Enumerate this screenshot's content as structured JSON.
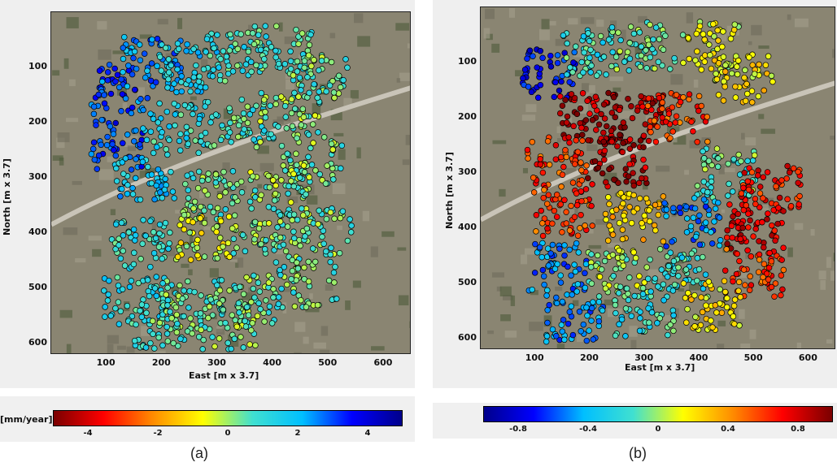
{
  "colors": {
    "map_base": "#8a8572",
    "road": "#c9c4b8",
    "point_outline": "#000000",
    "scale_red_blue": [
      "#7a0000",
      "#ff0000",
      "#ff8c00",
      "#ffff00",
      "#40e0d0",
      "#00bfff",
      "#0000ff",
      "#00008b"
    ],
    "scale_blue_red": [
      "#00008b",
      "#0000ff",
      "#00bfff",
      "#40e0d0",
      "#ffff00",
      "#ff8c00",
      "#ff0000",
      "#7a0000"
    ]
  },
  "chart_data": [
    {
      "type": "scatter",
      "panel_caption": "(a)",
      "xlabel": "East [m x 3.7]",
      "ylabel": "North [m x 3.7]",
      "xticks": [
        "100",
        "200",
        "300",
        "400",
        "500",
        "600"
      ],
      "yticks": [
        "100",
        "200",
        "300",
        "400",
        "500",
        "600"
      ],
      "xlim": [
        0,
        650
      ],
      "ylim": [
        620,
        0
      ],
      "y_inverted": true,
      "colorbar": {
        "unit_label": "[mm/year]",
        "ticks": [
          "-4",
          "-2",
          "0",
          "2",
          "4"
        ],
        "range": [
          -5,
          5
        ],
        "colormap": "red-yellow-cyan-blue"
      },
      "clusters": [
        {
          "x": 120,
          "y": 140,
          "value": 3.0
        },
        {
          "x": 180,
          "y": 90,
          "value": 2.5
        },
        {
          "x": 250,
          "y": 100,
          "value": 1.5
        },
        {
          "x": 330,
          "y": 80,
          "value": 1.0
        },
        {
          "x": 420,
          "y": 70,
          "value": 0.8
        },
        {
          "x": 480,
          "y": 120,
          "value": 0.5
        },
        {
          "x": 110,
          "y": 240,
          "value": 3.2
        },
        {
          "x": 220,
          "y": 210,
          "value": 1.2
        },
        {
          "x": 330,
          "y": 200,
          "value": 0.8
        },
        {
          "x": 430,
          "y": 190,
          "value": 0.3
        },
        {
          "x": 470,
          "y": 270,
          "value": 0.4
        },
        {
          "x": 170,
          "y": 300,
          "value": 1.8
        },
        {
          "x": 290,
          "y": 330,
          "value": 0.5
        },
        {
          "x": 410,
          "y": 320,
          "value": 0.2
        },
        {
          "x": 160,
          "y": 420,
          "value": 1.0
        },
        {
          "x": 280,
          "y": 410,
          "value": -0.5
        },
        {
          "x": 380,
          "y": 400,
          "value": 0.3
        },
        {
          "x": 490,
          "y": 400,
          "value": 0.4
        },
        {
          "x": 150,
          "y": 520,
          "value": 1.2
        },
        {
          "x": 250,
          "y": 530,
          "value": 0.6
        },
        {
          "x": 350,
          "y": 520,
          "value": 0.5
        },
        {
          "x": 460,
          "y": 490,
          "value": 0.6
        },
        {
          "x": 200,
          "y": 580,
          "value": 0.8
        },
        {
          "x": 320,
          "y": 570,
          "value": 0.4
        }
      ]
    },
    {
      "type": "scatter",
      "panel_caption": "(b)",
      "xlabel": "East [m x 3.7]",
      "ylabel": "North [m x 3.7]",
      "xticks": [
        "100",
        "200",
        "300",
        "400",
        "500",
        "600"
      ],
      "yticks": [
        "100",
        "200",
        "300",
        "400",
        "500",
        "600"
      ],
      "xlim": [
        0,
        650
      ],
      "ylim": [
        620,
        0
      ],
      "y_inverted": true,
      "colorbar": {
        "unit_label": "",
        "ticks": [
          "-0.8",
          "-0.4",
          "0",
          "0.4",
          "0.8"
        ],
        "range": [
          -1,
          1
        ],
        "colormap": "blue-cyan-yellow-red"
      },
      "clusters": [
        {
          "x": 120,
          "y": 120,
          "value": -0.7
        },
        {
          "x": 200,
          "y": 80,
          "value": -0.2
        },
        {
          "x": 300,
          "y": 70,
          "value": -0.1
        },
        {
          "x": 420,
          "y": 70,
          "value": 0.1
        },
        {
          "x": 480,
          "y": 130,
          "value": 0.2
        },
        {
          "x": 200,
          "y": 200,
          "value": 0.9
        },
        {
          "x": 280,
          "y": 200,
          "value": 0.9
        },
        {
          "x": 360,
          "y": 200,
          "value": 0.6
        },
        {
          "x": 140,
          "y": 280,
          "value": 0.6
        },
        {
          "x": 250,
          "y": 280,
          "value": 0.9
        },
        {
          "x": 450,
          "y": 300,
          "value": -0.1
        },
        {
          "x": 530,
          "y": 330,
          "value": 0.7
        },
        {
          "x": 150,
          "y": 370,
          "value": 0.6
        },
        {
          "x": 280,
          "y": 380,
          "value": 0.3
        },
        {
          "x": 390,
          "y": 390,
          "value": -0.5
        },
        {
          "x": 500,
          "y": 400,
          "value": 0.8
        },
        {
          "x": 140,
          "y": 470,
          "value": -0.5
        },
        {
          "x": 250,
          "y": 480,
          "value": 0.0
        },
        {
          "x": 360,
          "y": 480,
          "value": -0.2
        },
        {
          "x": 500,
          "y": 480,
          "value": 0.6
        },
        {
          "x": 170,
          "y": 560,
          "value": -0.5
        },
        {
          "x": 300,
          "y": 550,
          "value": -0.2
        },
        {
          "x": 420,
          "y": 540,
          "value": 0.2
        }
      ]
    }
  ]
}
